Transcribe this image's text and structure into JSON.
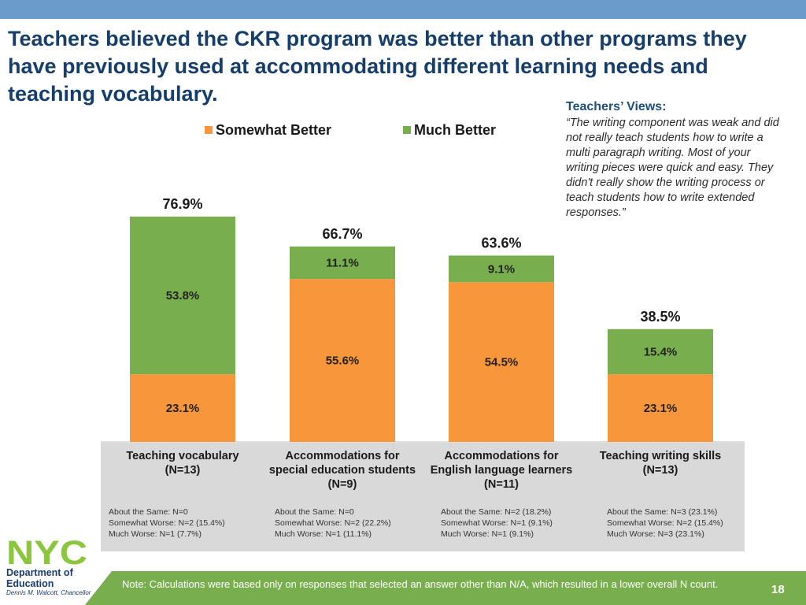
{
  "slide": {
    "title": "Teachers believed the CKR program was better than other programs they have previously used at accommodating different learning needs and teaching vocabulary.",
    "page_number": "18"
  },
  "colors": {
    "top_bar": "#6a9bcb",
    "title": "#163e6b",
    "somewhat_better": "#f7963a",
    "much_better": "#78ae4e",
    "panel": "#d9d9d9",
    "footer": "#78ae4e"
  },
  "quote": {
    "heading": "Teachers’ Views:",
    "text": "“The writing component was weak and did not really teach students how to write a multi paragraph writing. Most of your writing pieces were quick and easy. They didn't really show the writing process or teach students how to write extended responses.”"
  },
  "chart_data": {
    "type": "bar",
    "stacked": true,
    "categories": [
      "Teaching vocabulary (N=13)",
      "Accommodations for special education students (N=9)",
      "Accommodations for English language learners (N=11)",
      "Teaching writing skills (N=13)"
    ],
    "series": [
      {
        "name": "Somewhat Better",
        "color": "#f7963a",
        "values": [
          23.1,
          55.6,
          54.5,
          23.1
        ],
        "labels": [
          "23.1%",
          "55.6%",
          "54.5%",
          "23.1%"
        ]
      },
      {
        "name": "Much Better",
        "color": "#78ae4e",
        "values": [
          53.8,
          11.1,
          9.1,
          15.4
        ],
        "labels": [
          "53.8%",
          "11.1%",
          "9.1%",
          "15.4%"
        ]
      }
    ],
    "totals": [
      76.9,
      66.7,
      63.6,
      38.5
    ],
    "total_labels": [
      "76.9%",
      "66.7%",
      "63.6%",
      "38.5%"
    ],
    "legend_position": "top",
    "grid": false,
    "ylim": [
      0,
      100
    ]
  },
  "categories_display": [
    {
      "label": "Teaching vocabulary\n(N=13)",
      "details": [
        "About the Same: N=0",
        "Somewhat Worse: N=2 (15.4%)",
        "Much Worse: N=1 (7.7%)"
      ]
    },
    {
      "label": "Accommodations for\nspecial education students\n(N=9)",
      "details": [
        "About the Same: N=0",
        "Somewhat Worse: N=2 (22.2%)",
        "Much Worse: N=1 (11.1%)"
      ]
    },
    {
      "label": "Accommodations for\nEnglish language learners\n(N=11)",
      "details": [
        "About the Same: N=2 (18.2%)",
        "Somewhat Worse: N=1 (9.1%)",
        "Much Worse: N=1 (9.1%)"
      ]
    },
    {
      "label": "Teaching writing skills\n(N=13)",
      "details": [
        "About the Same: N=3 (23.1%)",
        "Somewhat Worse: N=2 (15.4%)",
        "Much Worse: N=3 (23.1%)"
      ]
    }
  ],
  "logo": {
    "mark": "NYC",
    "org_line1": "Department of",
    "org_line2": "Education",
    "sub": "Dennis M. Walcott, Chancellor"
  },
  "footer": {
    "note": "Note: Calculations were based only on responses that selected an answer other than N/A, which resulted in a lower overall N count."
  }
}
